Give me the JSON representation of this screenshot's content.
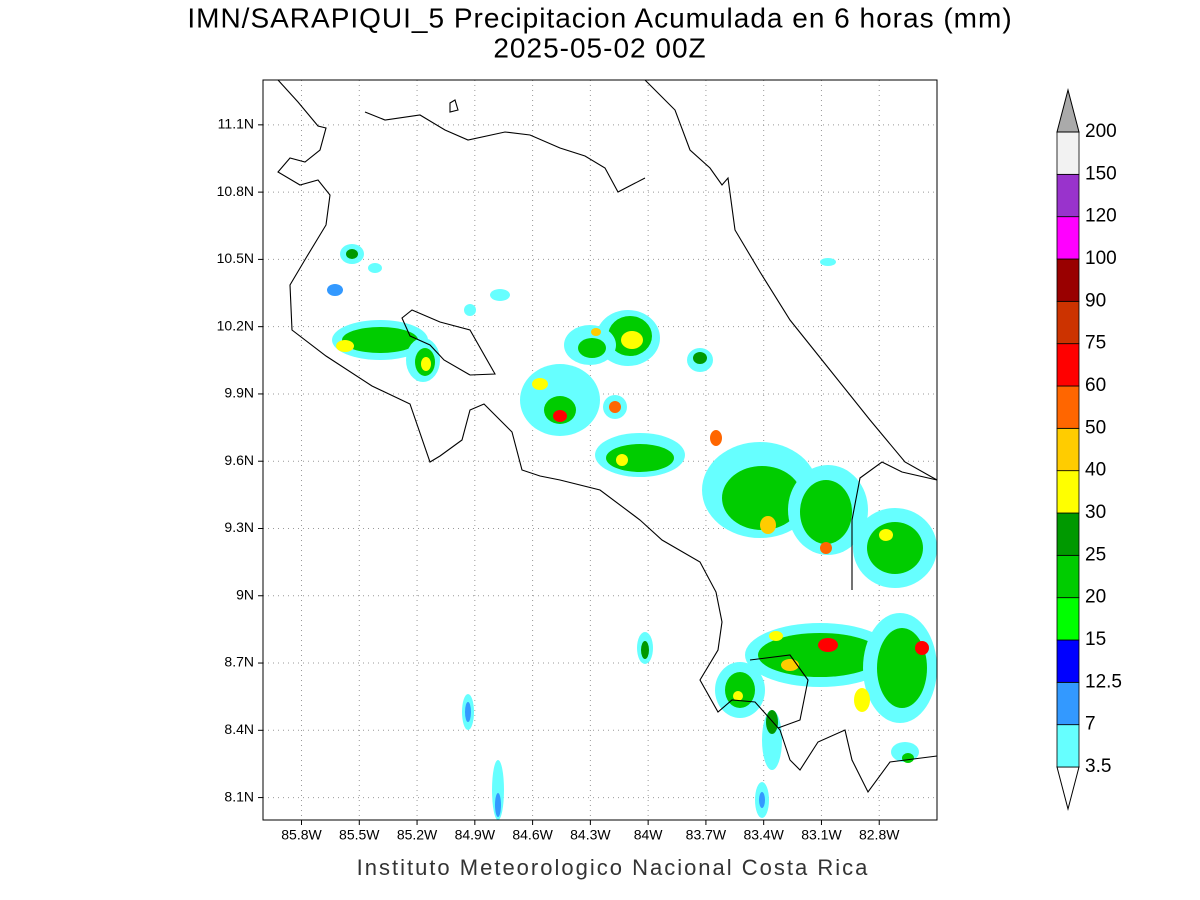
{
  "map": {
    "title": "IMN/SARAPIQUI_5 Precipitacion Acumulada en 6 horas (mm)",
    "subtitle": "2025-05-02 00Z",
    "lonlim": [
      -86.0,
      -82.5
    ],
    "latlim": [
      8.0,
      11.3
    ],
    "lon_ticks": [
      {
        "value": -85.8,
        "label": "85.8W"
      },
      {
        "value": -85.5,
        "label": "85.5W"
      },
      {
        "value": -85.2,
        "label": "85.2W"
      },
      {
        "value": -84.9,
        "label": "84.9W"
      },
      {
        "value": -84.6,
        "label": "84.6W"
      },
      {
        "value": -84.3,
        "label": "84.3W"
      },
      {
        "value": -84.0,
        "label": "84W"
      },
      {
        "value": -83.7,
        "label": "83.7W"
      },
      {
        "value": -83.4,
        "label": "83.4W"
      },
      {
        "value": -83.1,
        "label": "83.1W"
      },
      {
        "value": -82.8,
        "label": "82.8W"
      }
    ],
    "lat_ticks": [
      {
        "value": 8.1,
        "label": "8.1N"
      },
      {
        "value": 8.4,
        "label": "8.4N"
      },
      {
        "value": 8.7,
        "label": "8.7N"
      },
      {
        "value": 9.0,
        "label": "9N"
      },
      {
        "value": 9.3,
        "label": "9.3N"
      },
      {
        "value": 9.6,
        "label": "9.6N"
      },
      {
        "value": 9.9,
        "label": "9.9N"
      },
      {
        "value": 10.2,
        "label": "10.2N"
      },
      {
        "value": 10.5,
        "label": "10.5N"
      },
      {
        "value": 10.8,
        "label": "10.8N"
      },
      {
        "value": 11.1,
        "label": "11.1N"
      }
    ],
    "grid": true,
    "colorbar": {
      "levels": [
        3.5,
        7,
        12.5,
        15,
        20,
        25,
        30,
        40,
        50,
        60,
        75,
        90,
        100,
        120,
        150,
        200
      ],
      "colors": [
        "#ffffff",
        "#66ffff",
        "#3399ff",
        "#0000ff",
        "#00ff00",
        "#00cc00",
        "#009900",
        "#ffff00",
        "#ffcc00",
        "#ff6600",
        "#ff0000",
        "#cc3300",
        "#990000",
        "#ff00ff",
        "#9933cc",
        "#f2f2f2",
        "#aaaaaa"
      ]
    },
    "credit": "Instituto Meteorologico Nacional Costa Rica"
  }
}
